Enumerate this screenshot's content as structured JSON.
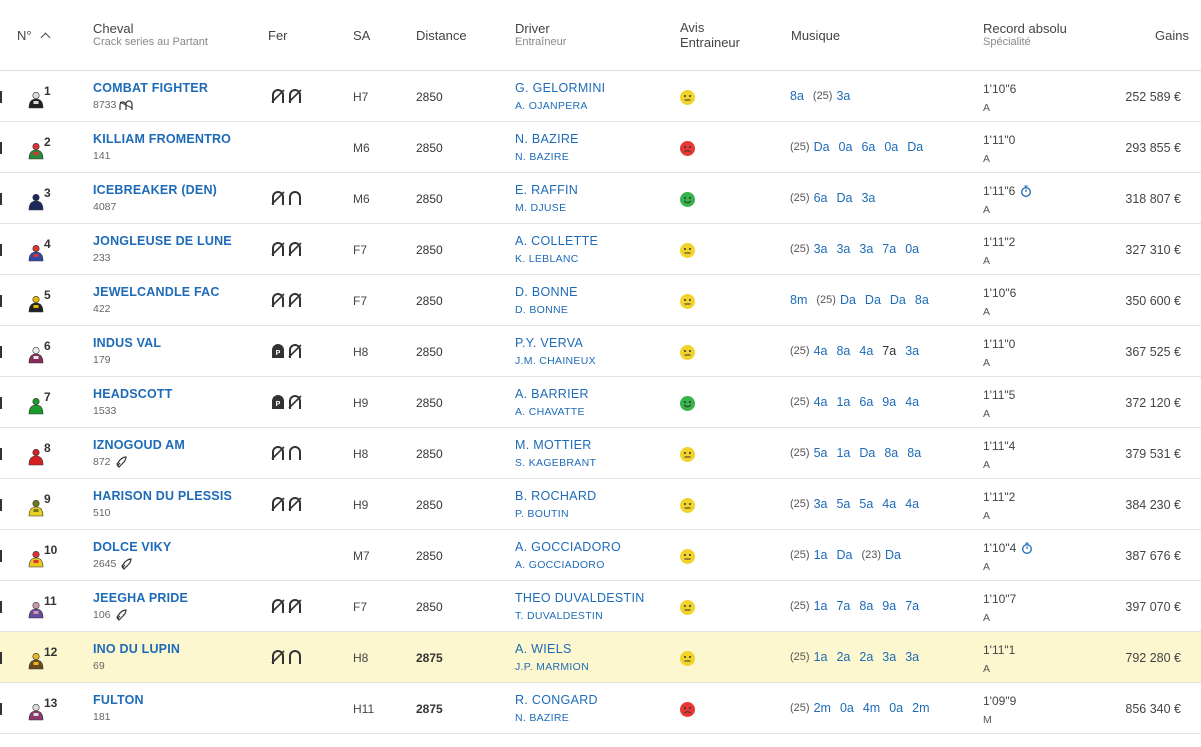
{
  "header": {
    "num": "N°",
    "cheval": "Cheval",
    "cheval_sub": "Crack series au Partant",
    "fer": "Fer",
    "sa": "SA",
    "distance": "Distance",
    "driver": "Driver",
    "driver_sub": "Entraîneur",
    "avis_line1": "Avis",
    "avis_line2": "Entraineur",
    "musique": "Musique",
    "record": "Record absolu",
    "record_sub": "Spécialité",
    "gains": "Gains"
  },
  "colors": {
    "link": "#1d6bb8",
    "highlight_row": "#fcf7cf",
    "avis_neutral": "#f2d32b",
    "avis_good": "#37b34a",
    "avis_bad": "#e53935"
  },
  "runners": [
    {
      "num": "1",
      "name": "COMBAT FIGHTER",
      "crack": "8733",
      "crack_icon": "horseshoes-icon",
      "fer": [
        "barefoot-icon",
        "barefoot-icon"
      ],
      "sa": "H7",
      "distance": "2850",
      "driver": "G. GELORMINI",
      "trainer": "A. OJANPERA",
      "avis": "neutral",
      "musique": [
        {
          "t": "8a"
        },
        {
          "y": "(25)"
        },
        {
          "t": "3a"
        }
      ],
      "record": "1'10\"6",
      "clock": false,
      "spec": "A",
      "gains": "252 589 €",
      "jockey_colors": [
        "#222",
        "#ddd"
      ]
    },
    {
      "num": "2",
      "name": "KILLIAM FROMENTRO",
      "crack": "141",
      "crack_icon": "",
      "fer": [],
      "sa": "M6",
      "distance": "2850",
      "driver": "N. BAZIRE",
      "trainer": "N. BAZIRE",
      "avis": "bad",
      "musique": [
        {
          "y": "(25)"
        },
        {
          "t": "Da"
        },
        {
          "t": "0a"
        },
        {
          "t": "6a"
        },
        {
          "t": "0a"
        },
        {
          "t": "Da"
        }
      ],
      "record": "1'11\"0",
      "clock": false,
      "spec": "A",
      "gains": "293 855 €",
      "jockey_colors": [
        "#2a8a3a",
        "#d33"
      ]
    },
    {
      "num": "3",
      "name": "ICEBREAKER (DEN)",
      "crack": "4087",
      "crack_icon": "",
      "fer": [
        "barefoot-icon",
        "shod-icon"
      ],
      "sa": "M6",
      "distance": "2850",
      "driver": "E. RAFFIN",
      "trainer": "M. DJUSE",
      "avis": "good",
      "musique": [
        {
          "y": "(25)"
        },
        {
          "t": "6a"
        },
        {
          "t": "Da"
        },
        {
          "t": "3a"
        }
      ],
      "record": "1'11\"6",
      "clock": true,
      "spec": "A",
      "gains": "318 807 €",
      "jockey_colors": [
        "#1b2a5a",
        "#1b2a5a"
      ]
    },
    {
      "num": "4",
      "name": "JONGLEUSE DE LUNE",
      "crack": "233",
      "crack_icon": "",
      "fer": [
        "barefoot-icon",
        "barefoot-icon"
      ],
      "sa": "F7",
      "distance": "2850",
      "driver": "A. COLLETTE",
      "trainer": "K. LEBLANC",
      "avis": "neutral",
      "musique": [
        {
          "y": "(25)"
        },
        {
          "t": "3a"
        },
        {
          "t": "3a"
        },
        {
          "t": "3a"
        },
        {
          "t": "7a"
        },
        {
          "t": "0a"
        }
      ],
      "record": "1'11\"2",
      "clock": false,
      "spec": "A",
      "gains": "327 310 €",
      "jockey_colors": [
        "#3049a8",
        "#d33"
      ]
    },
    {
      "num": "5",
      "name": "JEWELCANDLE FAC",
      "crack": "422",
      "crack_icon": "",
      "fer": [
        "barefoot-icon",
        "barefoot-icon"
      ],
      "sa": "F7",
      "distance": "2850",
      "driver": "D. BONNE",
      "trainer": "D. BONNE",
      "avis": "neutral",
      "musique": [
        {
          "t": "8m"
        },
        {
          "y": "(25)"
        },
        {
          "t": "Da"
        },
        {
          "t": "Da"
        },
        {
          "t": "Da"
        },
        {
          "t": "8a"
        }
      ],
      "record": "1'10\"6",
      "clock": false,
      "spec": "A",
      "gains": "350 600 €",
      "jockey_colors": [
        "#222",
        "#e6b800"
      ]
    },
    {
      "num": "6",
      "name": "INDUS VAL",
      "crack": "179",
      "crack_icon": "",
      "fer": [
        "plastic-shoe-icon",
        "barefoot-icon"
      ],
      "sa": "H8",
      "distance": "2850",
      "driver": "P.Y. VERVA",
      "trainer": "J.M. CHAINEUX",
      "avis": "neutral",
      "musique": [
        {
          "y": "(25)"
        },
        {
          "t": "4a"
        },
        {
          "t": "8a"
        },
        {
          "t": "4a"
        },
        {
          "t": "7a",
          "plain": true
        },
        {
          "t": "3a"
        }
      ],
      "record": "1'11\"0",
      "clock": false,
      "spec": "A",
      "gains": "367 525 €",
      "jockey_colors": [
        "#8a2a5a",
        "#eee"
      ]
    },
    {
      "num": "7",
      "name": "HEADSCOTT",
      "crack": "1533",
      "crack_icon": "",
      "fer": [
        "plastic-shoe-icon",
        "barefoot-icon"
      ],
      "sa": "H9",
      "distance": "2850",
      "driver": "A. BARRIER",
      "trainer": "A. CHAVATTE",
      "avis": "good",
      "musique": [
        {
          "y": "(25)"
        },
        {
          "t": "4a"
        },
        {
          "t": "1a"
        },
        {
          "t": "6a"
        },
        {
          "t": "9a"
        },
        {
          "t": "4a"
        }
      ],
      "record": "1'11\"5",
      "clock": false,
      "spec": "A",
      "gains": "372 120 €",
      "jockey_colors": [
        "#1a9a2a",
        "#1a9a2a"
      ]
    },
    {
      "num": "8",
      "name": "IZNOGOUD AM",
      "crack": "872",
      "crack_icon": "rocket-icon",
      "fer": [
        "barefoot-icon",
        "shod-icon"
      ],
      "sa": "H8",
      "distance": "2850",
      "driver": "M. MOTTIER",
      "trainer": "S. KAGEBRANT",
      "avis": "neutral",
      "musique": [
        {
          "y": "(25)"
        },
        {
          "t": "5a"
        },
        {
          "t": "1a"
        },
        {
          "t": "Da"
        },
        {
          "t": "8a"
        },
        {
          "t": "8a"
        }
      ],
      "record": "1'11\"4",
      "clock": false,
      "spec": "A",
      "gains": "379 531 €",
      "jockey_colors": [
        "#d42020",
        "#d42020"
      ]
    },
    {
      "num": "9",
      "name": "HARISON DU PLESSIS",
      "crack": "510",
      "crack_icon": "",
      "fer": [
        "barefoot-icon",
        "barefoot-icon"
      ],
      "sa": "H9",
      "distance": "2850",
      "driver": "B. ROCHARD",
      "trainer": "P. BOUTIN",
      "avis": "neutral",
      "musique": [
        {
          "y": "(25)"
        },
        {
          "t": "3a"
        },
        {
          "t": "5a"
        },
        {
          "t": "5a"
        },
        {
          "t": "4a"
        },
        {
          "t": "4a"
        }
      ],
      "record": "1'11\"2",
      "clock": false,
      "spec": "A",
      "gains": "384 230 €",
      "jockey_colors": [
        "#e8d020",
        "#6a7a20"
      ]
    },
    {
      "num": "10",
      "name": "DOLCE VIKY",
      "crack": "2645",
      "crack_icon": "rocket-icon",
      "fer": [],
      "sa": "M7",
      "distance": "2850",
      "driver": "A. GOCCIADORO",
      "trainer": "A. GOCCIADORO",
      "avis": "neutral",
      "musique": [
        {
          "y": "(25)"
        },
        {
          "t": "1a"
        },
        {
          "t": "Da"
        },
        {
          "y": "(23)"
        },
        {
          "t": "Da"
        }
      ],
      "record": "1'10\"4",
      "clock": true,
      "spec": "A",
      "gains": "387 676 €",
      "jockey_colors": [
        "#e8c820",
        "#d33"
      ]
    },
    {
      "num": "11",
      "name": "JEEGHA PRIDE",
      "crack": "106",
      "crack_icon": "rocket-icon",
      "fer": [
        "barefoot-icon",
        "barefoot-icon"
      ],
      "sa": "F7",
      "distance": "2850",
      "driver": "THEO DUVALDESTIN",
      "trainer": "T. DUVALDESTIN",
      "avis": "neutral",
      "musique": [
        {
          "y": "(25)"
        },
        {
          "t": "1a"
        },
        {
          "t": "7a"
        },
        {
          "t": "8a"
        },
        {
          "t": "9a"
        },
        {
          "t": "7a"
        }
      ],
      "record": "1'10\"7",
      "clock": false,
      "spec": "A",
      "gains": "397 070 €",
      "jockey_colors": [
        "#6a4a9a",
        "#c9a"
      ]
    },
    {
      "num": "12",
      "name": "INO DU LUPIN",
      "crack": "69",
      "crack_icon": "",
      "fer": [
        "barefoot-icon",
        "shod-icon"
      ],
      "sa": "H8",
      "distance": "2875",
      "distance_bold": true,
      "driver": "A. WIELS",
      "trainer": "J.P. MARMION",
      "avis": "neutral",
      "highlight": true,
      "musique": [
        {
          "y": "(25)"
        },
        {
          "t": "1a"
        },
        {
          "t": "2a"
        },
        {
          "t": "2a"
        },
        {
          "t": "3a"
        },
        {
          "t": "3a"
        }
      ],
      "record": "1'11\"1",
      "clock": false,
      "spec": "A",
      "gains": "792 280 €",
      "jockey_colors": [
        "#6a4a1a",
        "#e8b820"
      ]
    },
    {
      "num": "13",
      "name": "FULTON",
      "crack": "181",
      "crack_icon": "",
      "fer": [],
      "sa": "H11",
      "distance": "2875",
      "distance_bold": true,
      "driver": "R. CONGARD",
      "trainer": "N. BAZIRE",
      "avis": "bad",
      "musique": [
        {
          "y": "(25)"
        },
        {
          "t": "2m"
        },
        {
          "t": "0a"
        },
        {
          "t": "4m"
        },
        {
          "t": "0a"
        },
        {
          "t": "2m"
        }
      ],
      "record": "1'09\"9",
      "clock": false,
      "spec": "M",
      "gains": "856 340 €",
      "jockey_colors": [
        "#8a3a6a",
        "#ddd"
      ]
    }
  ]
}
